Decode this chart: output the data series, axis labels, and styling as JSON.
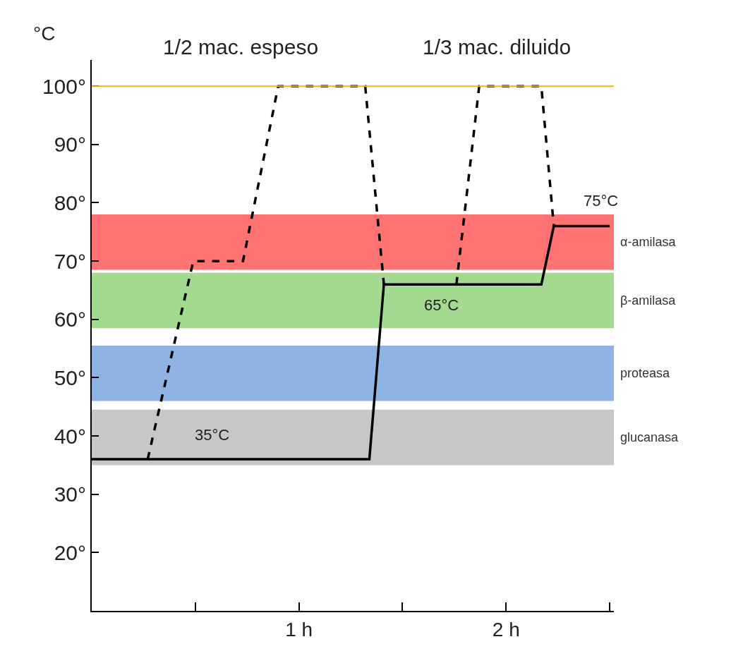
{
  "chart_data": {
    "type": "line",
    "ylabel": "°C",
    "xlim": [
      0,
      2.52
    ],
    "ylim": [
      10,
      104.5
    ],
    "xticks": [
      {
        "value": 0,
        "label": null
      },
      {
        "value": 0.5,
        "label": null
      },
      {
        "value": 1,
        "label": "1 h"
      },
      {
        "value": 1.5,
        "label": null
      },
      {
        "value": 2,
        "label": "2 h"
      },
      {
        "value": 2.5,
        "label": null
      }
    ],
    "yticks": [
      {
        "value": 20,
        "label": "20°"
      },
      {
        "value": 30,
        "label": "30°"
      },
      {
        "value": 40,
        "label": "40°"
      },
      {
        "value": 50,
        "label": "50°"
      },
      {
        "value": 60,
        "label": "60°"
      },
      {
        "value": 70,
        "label": "70°"
      },
      {
        "value": 80,
        "label": "80°"
      },
      {
        "value": 90,
        "label": "90°"
      },
      {
        "value": 100,
        "label": "100°"
      }
    ],
    "grid": false,
    "marker": "none",
    "series": [
      {
        "color": "#000000",
        "line_style": "solid",
        "x": [
          0,
          1.34,
          1.41,
          2.17,
          2.23,
          2.5
        ],
        "values": [
          36,
          36,
          66,
          66,
          76,
          76
        ]
      },
      {
        "color": "#000000",
        "line_style": "dashed",
        "x": [
          0.27,
          0.49,
          0.73,
          0.9,
          1.32,
          1.41
        ],
        "values": [
          36,
          70,
          70,
          100,
          100,
          66
        ]
      },
      {
        "color": "#000000",
        "line_style": "dashed",
        "x": [
          1.76,
          1.87,
          2.17,
          2.23
        ],
        "values": [
          66,
          100,
          100,
          76
        ]
      }
    ],
    "ref_lines": [
      {
        "axis": "y",
        "value": 100,
        "color": "#f0b020",
        "line_style": "solid"
      }
    ],
    "bands": [
      {
        "axis": "y",
        "from": 68.5,
        "to": 78,
        "label": "α-amilasa",
        "color": "#ff0000"
      },
      {
        "axis": "y",
        "from": 58.5,
        "to": 68,
        "label": "β-amilasa",
        "color": "#55bb33"
      },
      {
        "axis": "y",
        "from": 46,
        "to": 55.5,
        "label": "proteasa",
        "color": "#3377cc"
      },
      {
        "axis": "y",
        "from": 35,
        "to": 44.5,
        "label": "glucanasa",
        "color": "#999999"
      }
    ],
    "annotations": [
      "1/2 mac. espeso",
      "1/3 mac. diluido",
      "35°C",
      "65°C",
      "75°C"
    ]
  }
}
